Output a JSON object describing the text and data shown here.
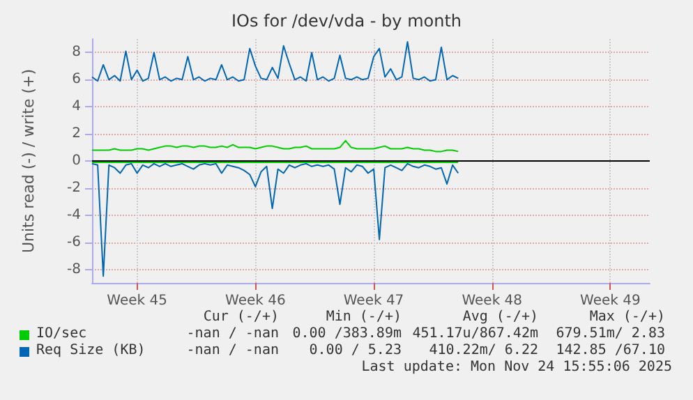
{
  "chart_data": {
    "type": "line",
    "title": "IOs for /dev/vda - by month",
    "ylabel": "Units read (-) / write (+)",
    "categories": [
      null,
      null,
      null,
      null,
      null,
      null,
      null,
      null,
      "Week 45",
      null,
      null,
      null,
      null,
      null,
      null,
      null,
      null,
      null,
      null,
      null,
      null,
      null,
      null,
      null,
      null,
      null,
      null,
      null,
      null,
      "Week 46",
      null,
      null,
      null,
      null,
      null,
      null,
      null,
      null,
      null,
      null,
      null,
      null,
      null,
      null,
      null,
      null,
      null,
      null,
      null,
      null,
      "Week 47",
      null,
      null,
      null,
      null,
      null,
      null,
      null,
      null,
      null,
      null,
      null,
      null,
      null,
      null,
      null,
      null,
      null,
      null,
      null,
      null,
      "Week 48",
      null,
      null,
      null,
      null,
      null,
      null,
      null,
      null,
      null,
      null,
      null,
      null,
      null,
      null,
      null,
      null,
      null,
      null,
      null,
      null,
      "Week 49",
      null,
      null,
      null,
      null,
      null,
      null,
      null
    ],
    "ylim": [
      -9,
      9
    ],
    "yticks": [
      -8,
      -6,
      -4,
      -2,
      0,
      2,
      4,
      6,
      8
    ],
    "grid": true,
    "legend": "bottom",
    "marker": "none",
    "ref_lines": [
      {
        "axis": "y",
        "value": 0,
        "color": "#000000"
      }
    ],
    "series": [
      {
        "color": "#00cc00",
        "values": [
          -0.1,
          -0.1,
          -0.1,
          -0.1,
          -0.1,
          -0.1,
          -0.1,
          -0.1,
          -0.1,
          -0.1,
          -0.1,
          -0.1,
          -0.1,
          -0.1,
          -0.1,
          -0.1,
          -0.1,
          -0.1,
          -0.1,
          -0.1,
          -0.1,
          -0.1,
          -0.1,
          -0.1,
          -0.1,
          -0.1,
          -0.1,
          -0.1,
          -0.1,
          -0.1,
          -0.1,
          -0.1,
          -0.1,
          -0.1,
          -0.1,
          -0.1,
          -0.1,
          -0.1,
          -0.1,
          -0.1,
          -0.1,
          -0.1,
          -0.1,
          -0.1,
          -0.1,
          -0.1,
          -0.1,
          -0.1,
          -0.1,
          -0.1,
          -0.1,
          -0.1,
          -0.1,
          -0.1,
          -0.1,
          -0.1,
          -0.1,
          -0.1,
          -0.1,
          -0.1,
          -0.1,
          -0.1,
          -0.1,
          -0.1,
          -0.1,
          -0.1,
          null,
          null,
          null,
          null,
          null,
          null,
          null,
          null,
          null,
          null,
          null,
          null,
          null,
          null,
          null,
          null,
          null,
          null,
          null,
          null,
          null,
          null,
          null,
          null,
          null,
          null,
          null,
          null,
          null,
          null,
          null,
          null,
          null,
          null
        ]
      },
      {
        "name": "IO/sec",
        "color": "#00cc00",
        "values": [
          0.8,
          0.8,
          0.8,
          0.8,
          0.9,
          0.8,
          0.8,
          0.8,
          0.9,
          0.9,
          0.8,
          0.9,
          1.0,
          1.1,
          1.1,
          1.0,
          1.1,
          1.1,
          1.0,
          1.1,
          1.1,
          1.0,
          1.0,
          1.1,
          1.0,
          1.2,
          1.0,
          1.0,
          1.0,
          0.9,
          1.0,
          1.1,
          1.1,
          1.0,
          0.9,
          0.9,
          1.0,
          1.0,
          1.1,
          0.9,
          0.9,
          0.9,
          0.9,
          0.9,
          1.0,
          1.5,
          1.0,
          0.9,
          0.9,
          0.9,
          0.9,
          1.0,
          1.1,
          0.9,
          0.9,
          0.9,
          1.0,
          0.9,
          0.9,
          0.8,
          0.8,
          0.7,
          0.7,
          0.8,
          0.8,
          0.7,
          null,
          null,
          null,
          null,
          null,
          null,
          null,
          null,
          null,
          null,
          null,
          null,
          null,
          null,
          null,
          null,
          null,
          null,
          null,
          null,
          null,
          null,
          null,
          null,
          null,
          null,
          null,
          null,
          null,
          null,
          null,
          null,
          null,
          null
        ]
      },
      {
        "color": "#0066b3",
        "values": [
          -0.2,
          -0.3,
          -8.5,
          -0.3,
          -0.5,
          -0.9,
          -0.3,
          -0.2,
          -0.9,
          -0.3,
          -0.5,
          -0.2,
          -0.4,
          -0.2,
          -0.4,
          -0.3,
          -0.2,
          -0.4,
          -0.6,
          -0.3,
          -0.2,
          -0.3,
          -0.2,
          -0.9,
          -0.3,
          -0.4,
          -0.5,
          -0.7,
          -1.0,
          -1.9,
          -0.8,
          -0.4,
          -3.5,
          -0.6,
          -0.9,
          -0.3,
          -0.5,
          -0.3,
          -0.2,
          -0.4,
          -0.3,
          -0.4,
          -0.3,
          -0.6,
          -3.2,
          -0.5,
          -0.8,
          -0.3,
          -0.4,
          -0.9,
          -0.6,
          -5.8,
          -0.5,
          -0.3,
          -0.5,
          -0.7,
          -0.2,
          -0.4,
          -0.5,
          -0.3,
          -0.4,
          -0.6,
          -0.5,
          -1.7,
          -0.3,
          -0.9,
          null,
          null,
          null,
          null,
          null,
          null,
          null,
          null,
          null,
          null,
          null,
          null,
          null,
          null,
          null,
          null,
          null,
          null,
          null,
          null,
          null,
          null,
          null,
          null,
          null,
          null,
          null,
          null,
          null,
          null,
          null,
          null,
          null,
          null
        ]
      },
      {
        "name": "Req Size (KB)",
        "color": "#0066b3",
        "values": [
          6.2,
          5.9,
          7.1,
          6.0,
          6.3,
          5.9,
          8.1,
          6.0,
          6.7,
          5.9,
          6.1,
          8.0,
          6.0,
          6.2,
          5.9,
          6.1,
          6.0,
          7.7,
          6.0,
          6.2,
          5.9,
          6.1,
          6.0,
          7.1,
          6.0,
          6.2,
          5.9,
          6.0,
          8.3,
          7.0,
          6.1,
          6.0,
          6.9,
          6.1,
          8.5,
          7.2,
          6.0,
          6.2,
          5.9,
          8.0,
          6.0,
          6.2,
          5.9,
          6.1,
          7.8,
          6.1,
          6.0,
          6.2,
          6.0,
          6.1,
          7.7,
          8.3,
          6.2,
          6.8,
          6.0,
          6.2,
          8.8,
          6.1,
          6.0,
          6.2,
          5.9,
          6.0,
          8.4,
          6.0,
          6.3,
          6.1,
          null,
          null,
          null,
          null,
          null,
          null,
          null,
          null,
          null,
          null,
          null,
          null,
          null,
          null,
          null,
          null,
          null,
          null,
          null,
          null,
          null,
          null,
          null,
          null,
          null,
          null,
          null,
          null,
          null,
          null,
          null,
          null,
          null,
          null
        ]
      }
    ],
    "annotations": [
      "Cur (-/+)",
      "Min (-/+)",
      "Avg (-/+)",
      "Max (-/+)",
      "-nan / -nan",
      "0.00 /383.89m",
      "451.17u/867.42m",
      "679.51m/ 2.83",
      "-nan / -nan",
      "0.00 / 5.23",
      "410.22m/ 6.22",
      "142.85 /67.10",
      "Last update: Mon Nov 24 15:55:06 2025"
    ]
  }
}
